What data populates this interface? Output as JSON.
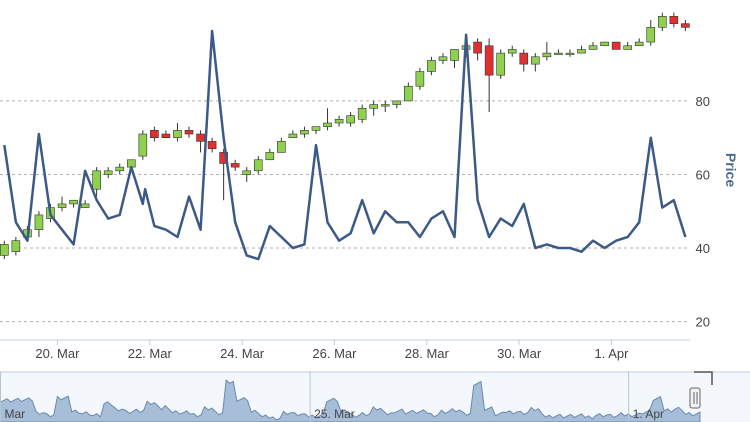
{
  "chart_data": {
    "type": "candlestick",
    "title": "",
    "ylabel": "Price",
    "ylim": [
      15,
      102
    ],
    "yticks": [
      20,
      40,
      60,
      80
    ],
    "grid": true,
    "xticks": [
      {
        "label": "20. Mar",
        "day": 20
      },
      {
        "label": "22. Mar",
        "day": 22
      },
      {
        "label": "24. Mar",
        "day": 24
      },
      {
        "label": "26. Mar",
        "day": 26
      },
      {
        "label": "28. Mar",
        "day": 28
      },
      {
        "label": "30. Mar",
        "day": 30
      },
      {
        "label": "1. Apr",
        "day": 32
      }
    ],
    "colors": {
      "up": "#8fd14f",
      "down": "#e03030",
      "line": "#3c5a86",
      "grid": "#b0b0b0",
      "navigator": "#9fb8d6"
    },
    "candles": [
      [
        18.85,
        38,
        42,
        37,
        41
      ],
      [
        19.1,
        39,
        43,
        38,
        42
      ],
      [
        19.35,
        43,
        46,
        43,
        45
      ],
      [
        19.6,
        45,
        50,
        43,
        49
      ],
      [
        19.85,
        48,
        52,
        47,
        51
      ],
      [
        20.1,
        51,
        54,
        50,
        52
      ],
      [
        20.35,
        52,
        53,
        51,
        53
      ],
      [
        20.6,
        51,
        53,
        51,
        52
      ],
      [
        20.85,
        56,
        62,
        54,
        61
      ],
      [
        21.1,
        60,
        62,
        59,
        61
      ],
      [
        21.35,
        61,
        63,
        60,
        62
      ],
      [
        21.6,
        62,
        64,
        61,
        64
      ],
      [
        21.85,
        65,
        72,
        64,
        71
      ],
      [
        22.1,
        72,
        73,
        69,
        70
      ],
      [
        22.35,
        71,
        72,
        70,
        70
      ],
      [
        22.6,
        70,
        74,
        69,
        72
      ],
      [
        22.85,
        72,
        73,
        70,
        71
      ],
      [
        23.1,
        71,
        72,
        66,
        69
      ],
      [
        23.35,
        69,
        70,
        66,
        67
      ],
      [
        23.6,
        66,
        67,
        53,
        63
      ],
      [
        23.85,
        63,
        64,
        61,
        62
      ],
      [
        24.1,
        60,
        62,
        58,
        61
      ],
      [
        24.35,
        61,
        65,
        60,
        64
      ],
      [
        24.6,
        64,
        67,
        64,
        66
      ],
      [
        24.85,
        66,
        70,
        66,
        69
      ],
      [
        25.1,
        70,
        72,
        70,
        71
      ],
      [
        25.35,
        71,
        73,
        70,
        72
      ],
      [
        25.6,
        72,
        73,
        71,
        73
      ],
      [
        25.85,
        73,
        78,
        72,
        74
      ],
      [
        26.1,
        74,
        76,
        73,
        75
      ],
      [
        26.35,
        74,
        77,
        73,
        76
      ],
      [
        26.6,
        75,
        79,
        74,
        78
      ],
      [
        26.85,
        78,
        80,
        76,
        79
      ],
      [
        27.1,
        79,
        80,
        77,
        79
      ],
      [
        27.35,
        79,
        80,
        78,
        80
      ],
      [
        27.6,
        80,
        85,
        80,
        84
      ],
      [
        27.85,
        84,
        89,
        83,
        88
      ],
      [
        28.1,
        88,
        92,
        87,
        91
      ],
      [
        28.35,
        91,
        93,
        90,
        92
      ],
      [
        28.6,
        91,
        94,
        89,
        94
      ],
      [
        28.85,
        94,
        96,
        92,
        95
      ],
      [
        29.1,
        96,
        97,
        91,
        93
      ],
      [
        29.35,
        95,
        97,
        77,
        87
      ],
      [
        29.6,
        87,
        94,
        86,
        93
      ],
      [
        29.85,
        93,
        95,
        92,
        94
      ],
      [
        30.1,
        93,
        94,
        88,
        90
      ],
      [
        30.35,
        90,
        93,
        88,
        92
      ],
      [
        30.6,
        92,
        96,
        91,
        93
      ],
      [
        30.85,
        93,
        94,
        93,
        93
      ],
      [
        31.1,
        93,
        94,
        92,
        93
      ],
      [
        31.35,
        93,
        95,
        93,
        94
      ],
      [
        31.6,
        94,
        96,
        94,
        95
      ],
      [
        31.85,
        95,
        96,
        95,
        96
      ],
      [
        32.1,
        96,
        96,
        94,
        94
      ],
      [
        32.35,
        94,
        96,
        94,
        95
      ],
      [
        32.6,
        95,
        97,
        95,
        96
      ],
      [
        32.85,
        96,
        102,
        95,
        100
      ],
      [
        33.1,
        100,
        104,
        99,
        103
      ],
      [
        33.35,
        103,
        104,
        100,
        101
      ],
      [
        33.6,
        101,
        102,
        99,
        100
      ]
    ],
    "line": [
      [
        18.85,
        68
      ],
      [
        19.1,
        47
      ],
      [
        19.35,
        42
      ],
      [
        19.6,
        71
      ],
      [
        19.85,
        49
      ],
      [
        20.1,
        45
      ],
      [
        20.35,
        41
      ],
      [
        20.6,
        61
      ],
      [
        20.85,
        53
      ],
      [
        21.1,
        48
      ],
      [
        21.35,
        49
      ],
      [
        21.6,
        62
      ],
      [
        21.85,
        52
      ],
      [
        21.9,
        56
      ],
      [
        22.1,
        46
      ],
      [
        22.35,
        45
      ],
      [
        22.6,
        43
      ],
      [
        22.85,
        54
      ],
      [
        23.1,
        45
      ],
      [
        23.35,
        99
      ],
      [
        23.6,
        70
      ],
      [
        23.85,
        47
      ],
      [
        24.1,
        38
      ],
      [
        24.35,
        37
      ],
      [
        24.6,
        46
      ],
      [
        24.85,
        43
      ],
      [
        25.1,
        40
      ],
      [
        25.35,
        41
      ],
      [
        25.6,
        68
      ],
      [
        25.85,
        47
      ],
      [
        26.1,
        42
      ],
      [
        26.35,
        44
      ],
      [
        26.6,
        53
      ],
      [
        26.85,
        44
      ],
      [
        27.1,
        50
      ],
      [
        27.35,
        47
      ],
      [
        27.6,
        47
      ],
      [
        27.85,
        43
      ],
      [
        28.1,
        48
      ],
      [
        28.35,
        50
      ],
      [
        28.6,
        43
      ],
      [
        28.85,
        98
      ],
      [
        29.1,
        53
      ],
      [
        29.35,
        43
      ],
      [
        29.6,
        48
      ],
      [
        29.85,
        46
      ],
      [
        30.1,
        52
      ],
      [
        30.35,
        40
      ],
      [
        30.6,
        41
      ],
      [
        30.85,
        40
      ],
      [
        31.1,
        40
      ],
      [
        31.35,
        39
      ],
      [
        31.6,
        42
      ],
      [
        31.85,
        40
      ],
      [
        32.1,
        42
      ],
      [
        32.35,
        43
      ],
      [
        32.6,
        47
      ],
      [
        32.85,
        70
      ],
      [
        33.1,
        51
      ],
      [
        33.35,
        53
      ],
      [
        33.6,
        43
      ]
    ]
  },
  "navigator": {
    "labels": [
      {
        "label": "Mar",
        "day": 18.3
      },
      {
        "label": "25. Mar",
        "day": 25.2
      },
      {
        "label": "1. Apr",
        "day": 32.3
      }
    ]
  }
}
